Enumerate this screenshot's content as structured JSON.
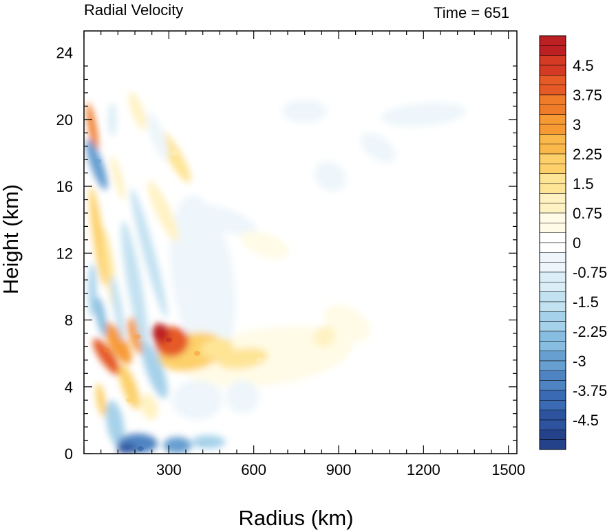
{
  "chart_data": {
    "type": "heatmap",
    "title_left": "Radial Velocity",
    "title_right": "Time = 651",
    "xlabel": "Radius (km)",
    "ylabel": "Height (km)",
    "xlim": [
      0,
      1530
    ],
    "ylim": [
      0,
      25.3
    ],
    "x_ticks": [
      "300",
      "600",
      "900",
      "1200",
      "1500"
    ],
    "x_tick_values": [
      300,
      600,
      900,
      1200,
      1500
    ],
    "y_ticks": [
      "0",
      "4",
      "8",
      "12",
      "16",
      "20",
      "24"
    ],
    "y_tick_values": [
      0,
      4,
      8,
      12,
      16,
      20,
      24
    ],
    "colorbar": {
      "min": -5.25,
      "max": 5.25,
      "step": 0.25,
      "labels": [
        "4.5",
        "3.75",
        "3",
        "2.25",
        "1.5",
        "0.75",
        "0",
        "-0.75",
        "-1.5",
        "-2.25",
        "-3",
        "-3.75",
        "-4.5"
      ],
      "label_values": [
        4.5,
        3.75,
        3,
        2.25,
        1.5,
        0.75,
        0,
        -0.75,
        -1.5,
        -2.25,
        -3,
        -3.75,
        -4.5
      ]
    },
    "features": [
      {
        "name": "outflow-max",
        "r": 300,
        "z": 6.8,
        "value": 4.8
      },
      {
        "name": "outflow-core",
        "r": 400,
        "z": 6.0,
        "value": 2.8
      },
      {
        "name": "outflow-tongue",
        "r": 620,
        "z": 5.6,
        "value": 1.1
      },
      {
        "name": "outflow-tail",
        "r": 920,
        "z": 7.9,
        "value": 0.6
      },
      {
        "name": "inner-outflow",
        "r": 80,
        "z": 6.2,
        "value": 3.6
      },
      {
        "name": "inner-outflow-2",
        "r": 190,
        "z": 7.0,
        "value": 3.0
      },
      {
        "name": "low-outflow",
        "r": 160,
        "z": 3.2,
        "value": 2.0
      },
      {
        "name": "upper-outflow",
        "r": 320,
        "z": 18.0,
        "value": 1.2
      },
      {
        "name": "inflow-upper",
        "r": 50,
        "z": 17.5,
        "value": -3.2
      },
      {
        "name": "inflow-surface",
        "r": 200,
        "z": 0.3,
        "value": -4.6
      },
      {
        "name": "inflow-surface-2",
        "r": 420,
        "z": 0.6,
        "value": -2.2
      },
      {
        "name": "inflow-mid",
        "r": 260,
        "z": 4.8,
        "value": -2.0
      },
      {
        "name": "inflow-far",
        "r": 1200,
        "z": 20.2,
        "value": -0.6
      }
    ]
  }
}
